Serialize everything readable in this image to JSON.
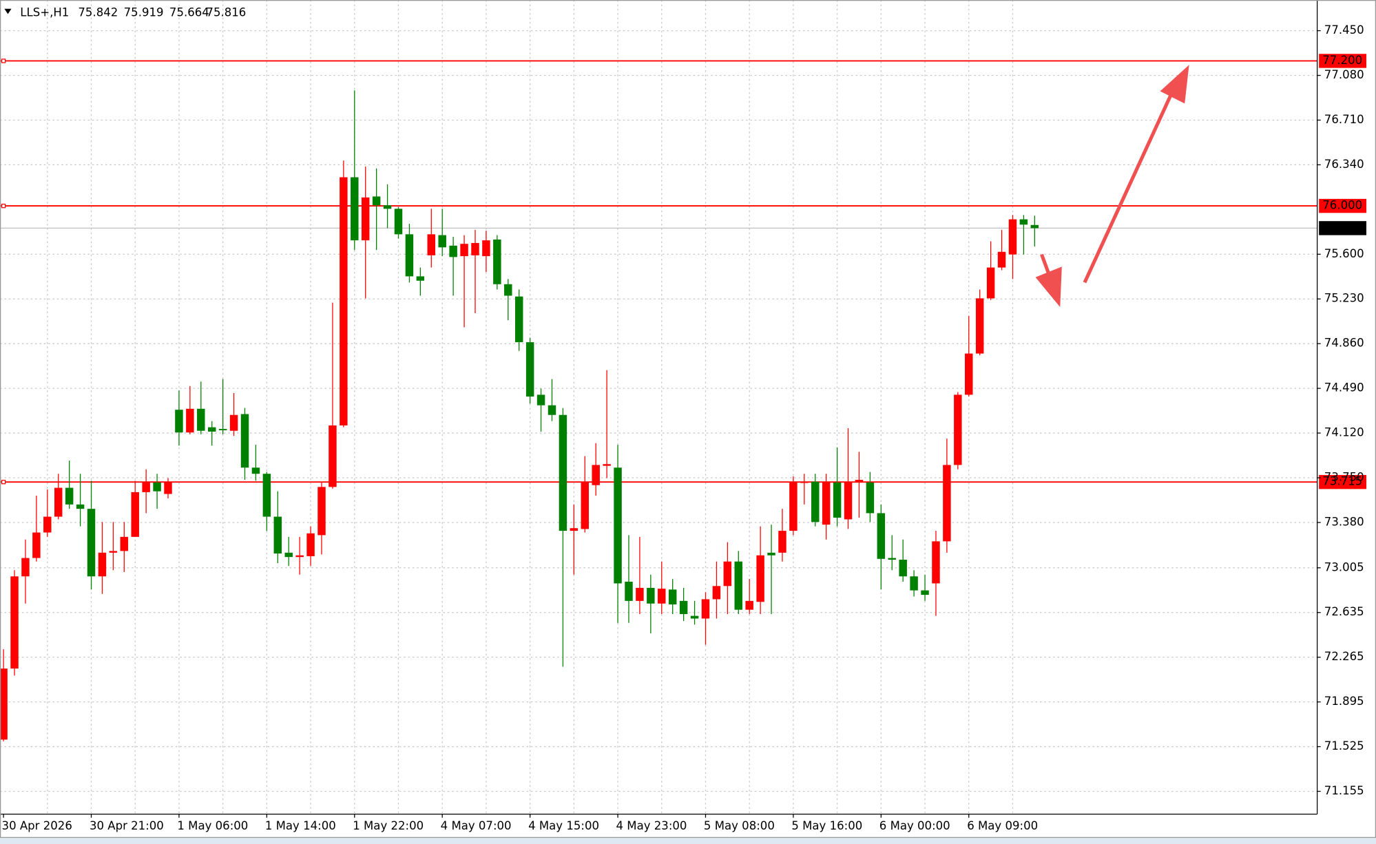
{
  "chart_data": {
    "type": "candlestick",
    "title": "LLS+,H1",
    "categories": [
      "30 Apr 2026",
      null,
      null,
      null,
      null,
      null,
      null,
      null,
      "30 Apr 21:00",
      null,
      null,
      null,
      null,
      null,
      null,
      null,
      "1 May 06:00",
      null,
      null,
      null,
      null,
      null,
      null,
      null,
      "1 May 14:00",
      null,
      null,
      null,
      null,
      null,
      null,
      null,
      "1 May 22:00",
      null,
      null,
      null,
      null,
      null,
      null,
      null,
      "4 May 07:00",
      null,
      null,
      null,
      null,
      null,
      null,
      null,
      "4 May 15:00",
      null,
      null,
      null,
      null,
      null,
      null,
      null,
      "4 May 23:00",
      null,
      null,
      null,
      null,
      null,
      null,
      null,
      "5 May 08:00",
      null,
      null,
      null,
      null,
      null,
      null,
      null,
      "5 May 16:00",
      null,
      null,
      null,
      null,
      null,
      null,
      null,
      "6 May 00:00",
      null,
      null,
      null,
      null,
      null,
      null,
      null,
      "6 May 09:00",
      null,
      null,
      null,
      null,
      null,
      null
    ],
    "open": [
      71.583,
      72.171,
      72.934,
      73.086,
      73.297,
      73.428,
      73.667,
      73.529,
      73.493,
      72.934,
      73.13,
      73.144,
      73.261,
      73.631,
      73.711,
      73.616,
      74.313,
      74.125,
      74.321,
      74.168,
      74.154,
      74.139,
      74.277,
      73.834,
      73.783,
      73.428,
      73.13,
      73.094,
      73.101,
      73.275,
      73.674,
      74.183,
      76.237,
      75.715,
      76.078,
      76.005,
      75.976,
      75.765,
      75.417,
      75.591,
      75.758,
      75.671,
      75.584,
      75.591,
      75.584,
      75.722,
      75.352,
      75.25,
      74.872,
      74.437,
      74.35,
      74.27,
      73.311,
      73.326,
      73.689,
      73.849,
      73.834,
      72.89,
      72.731,
      72.839,
      72.709,
      72.825,
      72.731,
      72.607,
      72.585,
      72.745,
      72.854,
      73.057,
      72.658,
      72.723,
      73.13,
      73.13,
      73.311,
      73.711,
      73.718,
      73.362,
      73.711,
      73.406,
      73.711,
      73.711,
      73.457,
      73.086,
      73.072,
      72.934,
      72.818,
      72.876,
      73.224,
      73.856,
      74.437,
      74.778,
      75.235,
      75.49,
      75.598,
      75.889,
      75.842
    ],
    "high": [
      72.331,
      72.985,
      73.239,
      73.602,
      73.653,
      73.783,
      73.892,
      73.783,
      73.725,
      73.384,
      73.384,
      73.384,
      73.725,
      73.82,
      73.783,
      73.747,
      74.473,
      74.509,
      74.546,
      74.219,
      74.567,
      74.451,
      74.328,
      74.023,
      73.798,
      73.638,
      73.261,
      73.261,
      73.348,
      73.711,
      75.199,
      76.375,
      76.956,
      76.325,
      76.31,
      76.179,
      75.991,
      75.852,
      75.49,
      75.976,
      75.976,
      75.744,
      75.758,
      75.802,
      75.795,
      75.758,
      75.395,
      75.308,
      74.909,
      74.488,
      74.567,
      74.328,
      73.529,
      73.929,
      74.037,
      74.64,
      74.023,
      73.275,
      73.261,
      72.948,
      73.057,
      72.912,
      72.839,
      72.731,
      72.803,
      73.057,
      73.217,
      73.144,
      72.912,
      73.348,
      73.362,
      73.493,
      73.762,
      73.783,
      73.783,
      73.783,
      74.001,
      74.161,
      73.965,
      73.798,
      73.529,
      73.275,
      73.239,
      72.985,
      72.948,
      73.311,
      74.074,
      74.459,
      75.09,
      75.308,
      75.707,
      75.802,
      75.925,
      75.925,
      75.919
    ],
    "low": [
      71.569,
      72.113,
      72.709,
      73.057,
      73.261,
      73.406,
      73.493,
      73.348,
      72.825,
      72.789,
      72.985,
      72.97,
      73.261,
      73.457,
      73.493,
      73.58,
      74.016,
      74.11,
      74.11,
      74.016,
      74.11,
      74.096,
      73.733,
      73.725,
      73.311,
      73.043,
      73.021,
      72.948,
      73.021,
      73.115,
      73.66,
      74.168,
      75.635,
      75.235,
      75.635,
      75.816,
      75.729,
      75.366,
      75.257,
      75.49,
      75.584,
      75.257,
      74.996,
      75.112,
      75.453,
      75.308,
      75.054,
      74.8,
      74.364,
      74.132,
      74.219,
      72.186,
      72.948,
      73.297,
      73.602,
      73.747,
      72.549,
      72.549,
      72.622,
      72.462,
      72.622,
      72.622,
      72.564,
      72.535,
      72.368,
      72.585,
      72.622,
      72.622,
      72.622,
      72.622,
      72.622,
      73.057,
      73.275,
      73.529,
      73.348,
      73.239,
      73.348,
      73.326,
      73.42,
      73.384,
      72.825,
      72.985,
      72.89,
      72.767,
      72.731,
      72.607,
      73.13,
      73.82,
      74.422,
      74.764,
      75.221,
      75.468,
      75.395,
      75.598,
      75.664
    ],
    "close": [
      72.171,
      72.934,
      73.086,
      73.297,
      73.428,
      73.667,
      73.529,
      73.493,
      72.934,
      73.13,
      73.144,
      73.261,
      73.631,
      73.718,
      73.638,
      73.711,
      74.125,
      74.321,
      74.139,
      74.132,
      74.146,
      74.27,
      73.834,
      73.783,
      73.428,
      73.123,
      73.094,
      73.108,
      73.29,
      73.674,
      74.183,
      76.237,
      75.715,
      76.07,
      76.005,
      75.976,
      75.765,
      75.417,
      75.381,
      75.765,
      75.657,
      75.577,
      75.686,
      75.693,
      75.715,
      75.352,
      75.257,
      74.872,
      74.422,
      74.35,
      74.27,
      73.311,
      73.333,
      73.718,
      73.856,
      73.863,
      72.876,
      72.731,
      72.839,
      72.709,
      72.832,
      72.702,
      72.622,
      72.585,
      72.745,
      72.854,
      73.057,
      72.658,
      72.731,
      73.108,
      73.108,
      73.311,
      73.711,
      73.718,
      73.384,
      73.711,
      73.42,
      73.718,
      73.733,
      73.457,
      73.079,
      73.072,
      72.934,
      72.818,
      72.781,
      73.224,
      73.856,
      74.437,
      74.778,
      75.235,
      75.49,
      75.62,
      75.889,
      75.845,
      75.816
    ],
    "up_color": "#ff0000",
    "down_color": "#008000",
    "ylim": [
      70.966,
      77.704
    ],
    "yticks": [
      {
        "value": 77.45,
        "label": "77.450"
      },
      {
        "value": 77.08,
        "label": "77.080"
      },
      {
        "value": 76.71,
        "label": "76.710"
      },
      {
        "value": 76.34,
        "label": "76.340"
      },
      {
        "value": 75.6,
        "label": "75.600"
      },
      {
        "value": 75.23,
        "label": "75.230"
      },
      {
        "value": 74.86,
        "label": "74.860"
      },
      {
        "value": 74.49,
        "label": "74.490"
      },
      {
        "value": 74.12,
        "label": "74.120"
      },
      {
        "value": 73.75,
        "label": "73.750"
      },
      {
        "value": 73.38,
        "label": "73.380"
      },
      {
        "value": 73.005,
        "label": "73.005"
      },
      {
        "value": 72.635,
        "label": "72.635"
      },
      {
        "value": 72.265,
        "label": "72.265"
      },
      {
        "value": 71.895,
        "label": "71.895"
      },
      {
        "value": 71.525,
        "label": "71.525"
      },
      {
        "value": 71.155,
        "label": "71.155"
      }
    ],
    "grid": true,
    "levels": [
      {
        "value": 77.2,
        "label": "77.200"
      },
      {
        "value": 76.0,
        "label": "76.000"
      },
      {
        "value": 73.715,
        "label": "73.715"
      }
    ],
    "level_color": "#ff0000"
  }
}
